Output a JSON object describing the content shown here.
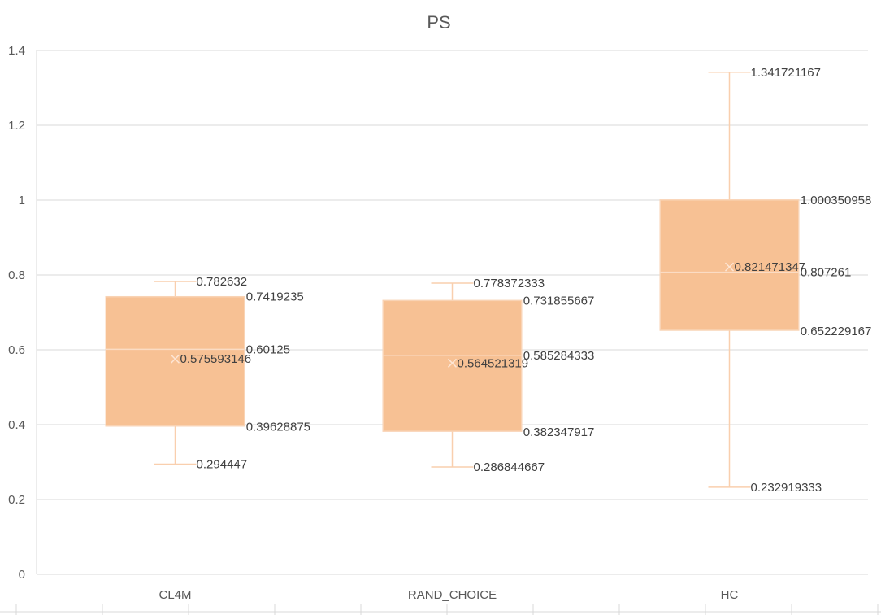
{
  "colors": {
    "box_fill": "#f7c194",
    "whisker": "#f9cfae",
    "grid": "#d9d9d9",
    "text": "#595959"
  },
  "chart_data": {
    "type": "box",
    "title": "PS",
    "xlabel": "",
    "ylabel": "",
    "ylim": [
      0,
      1.4
    ],
    "yticks": [
      0,
      0.2,
      0.4,
      0.6,
      0.8,
      1,
      1.2,
      1.4
    ],
    "ytick_labels": [
      "0",
      "0.2",
      "0.4",
      "0.6",
      "0.8",
      "1",
      "1.2",
      "1.4"
    ],
    "grid": true,
    "legend": "none",
    "categories": [
      "CL4M",
      "RAND_CHOICE",
      "HC"
    ],
    "boxes": [
      {
        "category": "CL4M",
        "min": 0.294447,
        "q1": 0.39628875,
        "median": 0.60125,
        "q3": 0.7419235,
        "max": 0.782632,
        "mean": 0.575593146,
        "labels": {
          "min": "0.294447",
          "q1": "0.39628875",
          "median": "0.60125",
          "q3": "0.7419235",
          "max": "0.782632",
          "mean": "0.575593146"
        }
      },
      {
        "category": "RAND_CHOICE",
        "min": 0.286844667,
        "q1": 0.382347917,
        "median": 0.585284333,
        "q3": 0.731855667,
        "max": 0.778372333,
        "mean": 0.564521319,
        "labels": {
          "min": "0.286844667",
          "q1": "0.382347917",
          "median": "0.585284333",
          "q3": "0.731855667",
          "max": "0.778372333",
          "mean": "0.564521319"
        }
      },
      {
        "category": "HC",
        "min": 0.232919333,
        "q1": 0.652229167,
        "median": 0.807261,
        "q3": 1.000350958,
        "max": 1.341721167,
        "mean": 0.821471347,
        "labels": {
          "min": "0.232919333",
          "q1": "0.652229167",
          "median": "0.807261",
          "q3": "1.000350958",
          "max": "1.341721167",
          "mean": "0.821471347"
        }
      }
    ]
  }
}
